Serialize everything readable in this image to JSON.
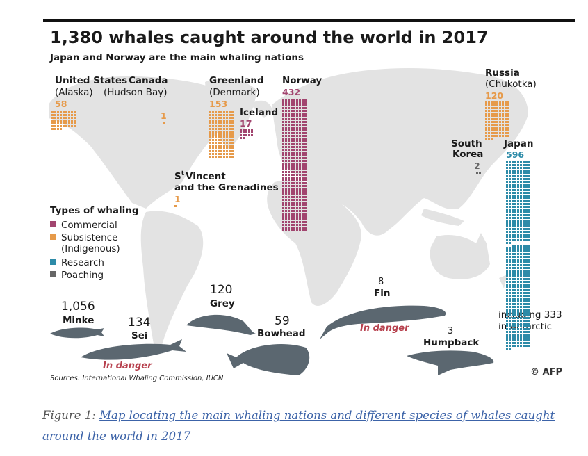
{
  "chart_data": {
    "type": "waffle-map",
    "title": "1,380 whales caught around the world in 2017",
    "subtitle": "Japan and Norway are the main whaling nations",
    "legend": {
      "title": "Types of whaling",
      "items": [
        {
          "key": "commercial",
          "label": "Commercial",
          "color": "#a2456f"
        },
        {
          "key": "subsistence",
          "label": "Subsistence",
          "label2": "(Indigenous)",
          "color": "#e69a4a"
        },
        {
          "key": "research",
          "label": "Research",
          "color": "#2d8ba8"
        },
        {
          "key": "poaching",
          "label": "Poaching",
          "color": "#666666"
        }
      ]
    },
    "countries": [
      {
        "name": "United States",
        "detail": "(Alaska)",
        "count_label": "58",
        "value": 58,
        "type": "subsistence"
      },
      {
        "name": "Canada",
        "detail": "(Hudson Bay)",
        "count_label": "1",
        "value": 1,
        "type": "subsistence"
      },
      {
        "name": "Greenland",
        "detail": "(Denmark)",
        "count_label": "153",
        "value": 153,
        "type": "subsistence"
      },
      {
        "name": "Iceland",
        "detail": "",
        "count_label": "17",
        "value": 17,
        "type": "commercial"
      },
      {
        "name": "Norway",
        "detail": "",
        "count_label": "432",
        "value": 432,
        "type": "commercial"
      },
      {
        "name": "Russia",
        "detail": "(Chukotka)",
        "count_label": "120",
        "value": 120,
        "type": "subsistence"
      },
      {
        "name_line1": "South",
        "name_line2": "Korea",
        "count_label": "2",
        "value": 2,
        "type": "poaching"
      },
      {
        "name": "Japan",
        "count_label": "596",
        "value": 596,
        "type": "research",
        "note_line1": "including 333",
        "note_line2": "in  Antarctic",
        "antarctic": 333
      },
      {
        "name_line1": "Vincent",
        "name_sup": "t",
        "name_prefix": "S",
        "name_line2": "and the Grenadines",
        "count_label": "1",
        "value": 1,
        "type": "subsistence"
      }
    ],
    "species": [
      {
        "name": "Minke",
        "count_label": "1,056",
        "value": 1056,
        "in_danger": false
      },
      {
        "name": "Sei",
        "count_label": "134",
        "value": 134,
        "in_danger": true
      },
      {
        "name": "Grey",
        "count_label": "120",
        "value": 120,
        "in_danger": false
      },
      {
        "name": "Bowhead",
        "count_label": "59",
        "value": 59,
        "in_danger": false
      },
      {
        "name": "Fin",
        "count_label": "8",
        "value": 8,
        "in_danger": true
      },
      {
        "name": "Humpback",
        "count_label": "3",
        "value": 3,
        "in_danger": false
      }
    ],
    "in_danger_label": "In danger",
    "source": "Sources: International Whaling Commission, IUCN",
    "credit": "© AFP"
  },
  "caption": {
    "label": "Figure 1:",
    "link_text": "Map locating the main whaling nations and different species of whales caught around the world in 2017"
  }
}
